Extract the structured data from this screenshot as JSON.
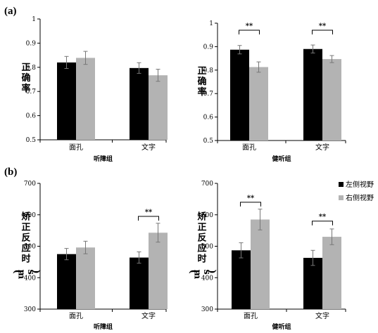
{
  "figure": {
    "panels": [
      {
        "label": "(a)"
      },
      {
        "label": "(b)"
      }
    ],
    "legend": [
      {
        "name": "左侧视野",
        "color": "#000000"
      },
      {
        "name": "右侧视野",
        "color": "#b3b3b3"
      }
    ]
  },
  "chart_data": [
    {
      "type": "bar",
      "panel": "(a)",
      "ylabel": "正确率",
      "xlabel": "听障组",
      "ylim": [
        0.5,
        1
      ],
      "yticks": [
        "0.5",
        "0.6",
        "0.7",
        "0.8",
        "0.9",
        "1"
      ],
      "categories": [
        "面孔",
        "文字"
      ],
      "series": [
        {
          "name": "左侧视野",
          "color": "#000000",
          "values": [
            0.82,
            0.797
          ],
          "errors": [
            0.025,
            0.022
          ]
        },
        {
          "name": "右侧视野",
          "color": "#b3b3b3",
          "values": [
            0.839,
            0.767
          ],
          "errors": [
            0.027,
            0.025
          ]
        }
      ],
      "significance": []
    },
    {
      "type": "bar",
      "panel": "(a)",
      "ylabel": "正确率",
      "xlabel": "健听组",
      "ylim": [
        0.5,
        1
      ],
      "yticks": [
        "0.5",
        "0.6",
        "0.7",
        "0.8",
        "0.9",
        "1"
      ],
      "categories": [
        "面孔",
        "文字"
      ],
      "series": [
        {
          "name": "左侧视野",
          "color": "#000000",
          "values": [
            0.887,
            0.89
          ],
          "errors": [
            0.018,
            0.017
          ]
        },
        {
          "name": "右侧视野",
          "color": "#b3b3b3",
          "values": [
            0.813,
            0.847
          ],
          "errors": [
            0.022,
            0.015
          ]
        }
      ],
      "significance": [
        {
          "category": 0,
          "label": "**",
          "level": 0.97
        },
        {
          "category": 1,
          "label": "**",
          "level": 0.97
        }
      ]
    },
    {
      "type": "bar",
      "panel": "(b)",
      "ylabel": "矫正反应时(ms)",
      "xlabel": "听障组",
      "ylim": [
        300,
        700
      ],
      "yticks": [
        "300",
        "400",
        "500",
        "600",
        "700"
      ],
      "categories": [
        "面孔",
        "文字"
      ],
      "series": [
        {
          "name": "左侧视野",
          "color": "#000000",
          "values": [
            475,
            464
          ],
          "errors": [
            18,
            18
          ]
        },
        {
          "name": "右侧视野",
          "color": "#b3b3b3",
          "values": [
            496,
            543
          ],
          "errors": [
            20,
            30
          ]
        }
      ],
      "significance": [
        {
          "category": 1,
          "label": "**",
          "level": 595
        }
      ]
    },
    {
      "type": "bar",
      "panel": "(b)",
      "ylabel": "矫正反应时(ms)",
      "xlabel": "健听组",
      "ylim": [
        300,
        700
      ],
      "yticks": [
        "300",
        "400",
        "500",
        "600",
        "700"
      ],
      "categories": [
        "面孔",
        "文字"
      ],
      "series": [
        {
          "name": "左侧视野",
          "color": "#000000",
          "values": [
            487,
            463
          ],
          "errors": [
            24,
            24
          ]
        },
        {
          "name": "右侧视野",
          "color": "#b3b3b3",
          "values": [
            585,
            530
          ],
          "errors": [
            33,
            25
          ]
        }
      ],
      "significance": [
        {
          "category": 0,
          "label": "**",
          "level": 640
        },
        {
          "category": 1,
          "label": "**",
          "level": 580
        }
      ]
    }
  ]
}
